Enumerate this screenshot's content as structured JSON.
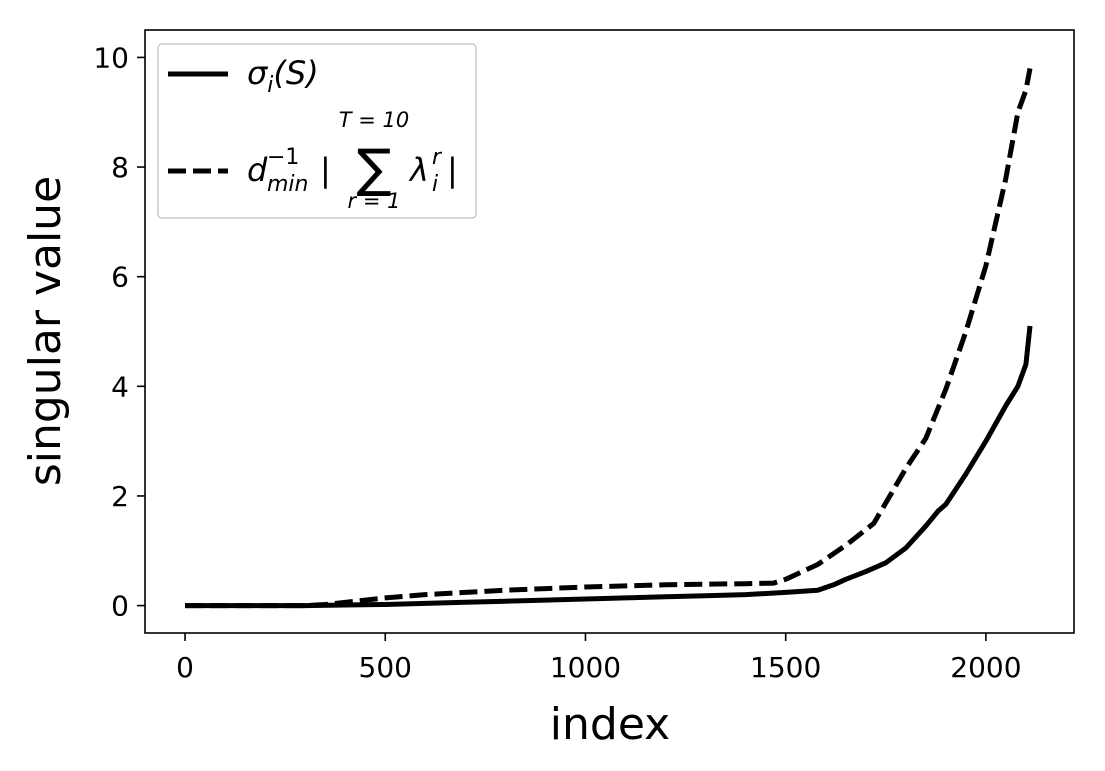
{
  "chart_data": {
    "type": "line",
    "xlabel": "index",
    "ylabel": "singular value",
    "xlim": [
      -100,
      2220
    ],
    "ylim": [
      -0.5,
      10.5
    ],
    "xticks": [
      0,
      500,
      1000,
      1500,
      2000
    ],
    "yticks": [
      0,
      2,
      4,
      6,
      8,
      10
    ],
    "grid": false,
    "legend_position": "top-left",
    "series": [
      {
        "name": "σ_i(S)",
        "style": "solid",
        "color": "#000000",
        "x": [
          0,
          100,
          200,
          300,
          400,
          500,
          600,
          700,
          800,
          900,
          1000,
          1100,
          1200,
          1300,
          1400,
          1500,
          1580,
          1620,
          1650,
          1700,
          1750,
          1800,
          1850,
          1880,
          1900,
          1950,
          2000,
          2050,
          2080,
          2100,
          2110
        ],
        "y": [
          0.0,
          0.0,
          0.0,
          0.0,
          0.01,
          0.02,
          0.04,
          0.06,
          0.08,
          0.1,
          0.12,
          0.14,
          0.16,
          0.18,
          0.2,
          0.24,
          0.28,
          0.38,
          0.48,
          0.62,
          0.78,
          1.05,
          1.45,
          1.72,
          1.85,
          2.4,
          3.0,
          3.65,
          4.0,
          4.4,
          5.1
        ]
      },
      {
        "name": "d_min^{-1} | Σ_{r=1}^{T=10} λ_i^r |",
        "style": "dashed",
        "color": "#000000",
        "x": [
          0,
          100,
          200,
          300,
          350,
          400,
          500,
          600,
          700,
          800,
          900,
          1000,
          1100,
          1200,
          1300,
          1400,
          1470,
          1500,
          1580,
          1650,
          1720,
          1780,
          1800,
          1850,
          1900,
          1950,
          2000,
          2050,
          2080,
          2100,
          2110
        ],
        "y": [
          0.0,
          0.0,
          0.0,
          0.0,
          0.02,
          0.06,
          0.14,
          0.2,
          0.24,
          0.28,
          0.31,
          0.34,
          0.36,
          0.38,
          0.39,
          0.4,
          0.41,
          0.48,
          0.75,
          1.1,
          1.5,
          2.25,
          2.5,
          3.05,
          3.95,
          5.0,
          6.2,
          7.8,
          9.0,
          9.4,
          9.8
        ]
      }
    ],
    "legend": [
      {
        "style": "solid",
        "symbol": "σ",
        "sub": "i",
        "rest": "(S)"
      },
      {
        "style": "dashed",
        "d": "d",
        "d_sup": "−1",
        "d_sub": "min",
        "bar_open": "|",
        "sum": "∑",
        "sum_top": "T = 10",
        "sum_bottom": "r = 1",
        "lambda": "λ",
        "lambda_sub": "i",
        "lambda_sup": "r",
        "bar_close": "|"
      }
    ]
  }
}
